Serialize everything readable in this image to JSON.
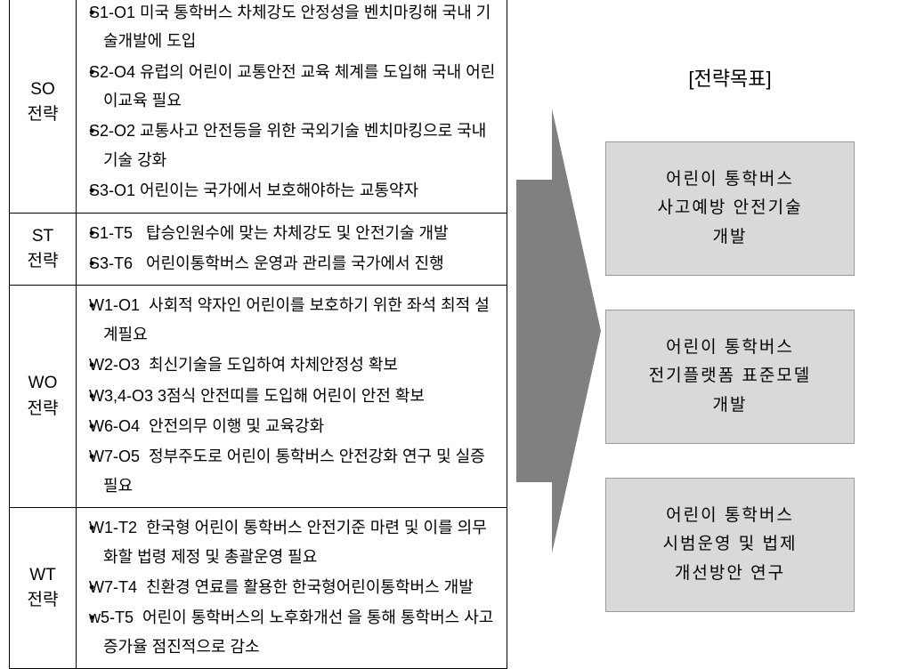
{
  "colors": {
    "background": "#ffffff",
    "border": "#000000",
    "goal_box_bg": "#d9d9d9",
    "goal_box_border": "#999999",
    "arrow_fill": "#808080",
    "text": "#000000"
  },
  "fonts": {
    "body_size": 18,
    "label_size": 19,
    "goal_size": 19,
    "title_size": 22
  },
  "strategies": [
    {
      "label": "SO\n전략",
      "items": [
        "S1-O1 미국 통학버스 차체강도 안정성을 벤치마킹해 국내 기술개발에 도입",
        "S2-O4 유럽의 어린이 교통안전 교육 체계를 도입해 국내 어린이교육 필요",
        "S2-O2 교통사고 안전등을 위한 국외기술 벤치마킹으로 국내기술 강화",
        "S3-O1 어린이는 국가에서 보호해야하는 교통약자"
      ]
    },
    {
      "label": "ST\n전략",
      "items": [
        "S1-T5   탑승인원수에 맞는 차체강도 및 안전기술 개발",
        "S3-T6   어린이통학버스 운영과 관리를 국가에서 진행"
      ]
    },
    {
      "label": "WO\n전략",
      "items": [
        "W1-O1  사회적 약자인 어린이를 보호하기 위한 좌석 최적 설계필요",
        "W2-O3  최신기술을 도입하여 차체안정성 확보",
        "W3,4-O3 3점식 안전띠를 도입해 어린이 안전 확보",
        "W6-O4  안전의무 이행 및 교육강화",
        "W7-O5  정부주도로 어린이 통학버스 안전강화 연구 및 실증 필요"
      ]
    },
    {
      "label": "WT\n전략",
      "items": [
        "W1-T2  한국형 어린이 통학버스 안전기준 마련 및 이를 의무화할 법령 제정 및 총괄운영 필요",
        "W7-T4  친환경 연료를 활용한 한국형어린이통학버스 개발",
        "w5-T5  어린이 통학버스의 노후화개선 을 통해 통학버스 사고 증가율 점진적으로 감소"
      ]
    }
  ],
  "goals_title": "[전략목표]",
  "goals": [
    "어린이 통학버스\n사고예방 안전기술\n개발",
    "어린이 통학버스\n전기플랫폼 표준모델\n개발",
    "어린이 통학버스\n시범운영 및 법제\n개선방안 연구"
  ]
}
